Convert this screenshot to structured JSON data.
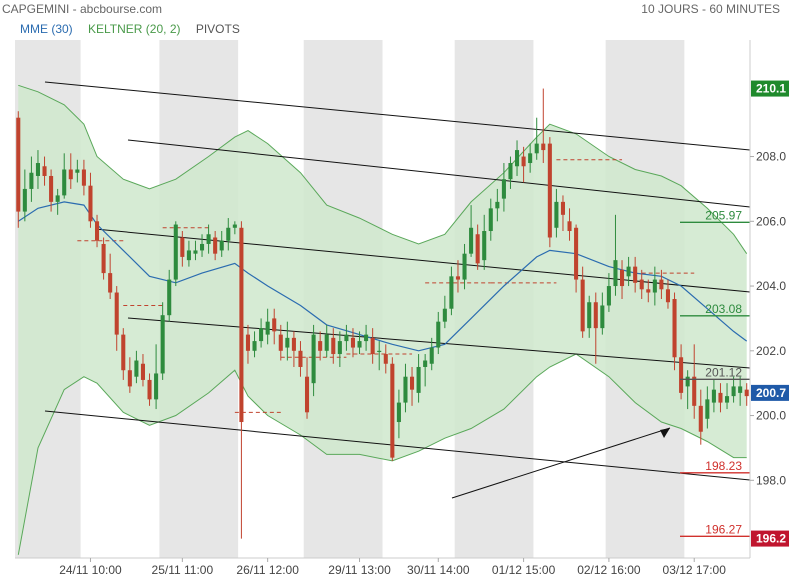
{
  "header": {
    "title": "CAPGEMINI - abcbourse.com",
    "period": "10 JOURS - 60 MINUTES"
  },
  "legend": {
    "mme": "MME (30)",
    "keltner": "KELTNER (20, 2)",
    "pivots": "PIVOTS"
  },
  "colors": {
    "up": "#2e8b3e",
    "down": "#c0432e",
    "mme": "#2b6cb0",
    "keltner_line": "#5aa85a",
    "keltner_fill": "#cfe8cc",
    "session_shade": "#e6e6e6"
  },
  "chart_data": {
    "type": "candlestick",
    "x_tick_labels": [
      "24/11 10:00",
      "25/11 11:00",
      "26/11 12:00",
      "29/11 13:00",
      "30/11 14:00",
      "01/12 15:00",
      "02/12 16:00",
      "03/12 17:00"
    ],
    "y_ticks": [
      198.0,
      200.0,
      202.0,
      204.0,
      206.0,
      208.0
    ],
    "y_range": [
      195.6,
      211.6
    ],
    "price_badges": [
      {
        "label": "210.1",
        "value": 210.1,
        "color": "#1f8a2c"
      },
      {
        "label": "200.7",
        "value": 200.7,
        "color": "#1f5aa8"
      },
      {
        "label": "196.2",
        "value": 196.2,
        "color": "#c0152e"
      }
    ],
    "pivot_levels": [
      {
        "label": "205.97",
        "value": 205.97,
        "color": "#2e8b3e"
      },
      {
        "label": "203.08",
        "value": 203.08,
        "color": "#2e8b3e"
      },
      {
        "label": "201.12",
        "value": 201.12,
        "color": "#555555"
      },
      {
        "label": "198.23",
        "value": 198.23,
        "color": "#d0312d"
      },
      {
        "label": "196.27",
        "value": 196.27,
        "color": "#d0312d"
      }
    ],
    "candles": [
      [
        209.2,
        206.3,
        209.4,
        205.8
      ],
      [
        206.3,
        207.0,
        207.6,
        206.0
      ],
      [
        207.0,
        207.5,
        208.0,
        206.6
      ],
      [
        207.4,
        207.8,
        208.2,
        207.0
      ],
      [
        207.7,
        207.4,
        208.0,
        207.1
      ],
      [
        207.4,
        206.6,
        207.6,
        206.3
      ],
      [
        206.6,
        206.8,
        207.0,
        206.2
      ],
      [
        206.8,
        207.6,
        208.1,
        206.7
      ],
      [
        207.6,
        207.3,
        208.1,
        207.0
      ],
      [
        207.5,
        207.6,
        207.9,
        207.2
      ],
      [
        207.6,
        207.1,
        207.9,
        206.8
      ],
      [
        207.1,
        206.0,
        207.5,
        205.8
      ],
      [
        206.0,
        205.4,
        206.2,
        205.2
      ],
      [
        205.3,
        204.4,
        205.5,
        204.2
      ],
      [
        204.4,
        203.8,
        205.0,
        203.6
      ],
      [
        203.8,
        202.5,
        204.0,
        202.0
      ],
      [
        202.5,
        201.4,
        202.7,
        201.1
      ],
      [
        201.4,
        200.9,
        201.8,
        200.7
      ],
      [
        201.2,
        201.7,
        202.0,
        201.0
      ],
      [
        201.6,
        201.1,
        201.9,
        200.9
      ],
      [
        201.1,
        200.5,
        201.3,
        200.3
      ],
      [
        200.5,
        201.3,
        202.2,
        200.2
      ],
      [
        201.3,
        203.1,
        203.5,
        201.1
      ],
      [
        203.1,
        204.2,
        204.5,
        202.9
      ],
      [
        204.2,
        205.9,
        206.0,
        204.0
      ],
      [
        205.5,
        204.9,
        205.7,
        204.6
      ],
      [
        204.8,
        205.1,
        205.4,
        204.6
      ],
      [
        205.0,
        205.1,
        205.4,
        204.8
      ],
      [
        205.1,
        205.3,
        205.6,
        204.9
      ],
      [
        205.3,
        205.6,
        205.9,
        205.0
      ],
      [
        205.5,
        205.0,
        205.7,
        204.8
      ],
      [
        205.1,
        205.4,
        205.7,
        204.9
      ],
      [
        205.4,
        205.8,
        206.1,
        205.1
      ],
      [
        205.8,
        205.9,
        206.0,
        205.6
      ],
      [
        205.8,
        199.8,
        206.0,
        196.2
      ],
      [
        202.5,
        202.0,
        202.8,
        201.6
      ],
      [
        202.0,
        202.3,
        202.6,
        201.8
      ],
      [
        202.3,
        202.7,
        203.0,
        202.1
      ],
      [
        202.5,
        202.9,
        203.3,
        202.2
      ],
      [
        203.0,
        202.6,
        203.3,
        202.2
      ],
      [
        202.5,
        202.0,
        202.8,
        201.7
      ],
      [
        202.1,
        202.4,
        202.9,
        201.7
      ],
      [
        202.4,
        202.0,
        202.6,
        201.5
      ],
      [
        202.0,
        201.5,
        202.3,
        201.2
      ],
      [
        201.2,
        200.1,
        201.8,
        199.9
      ],
      [
        201.0,
        202.5,
        202.8,
        200.6
      ],
      [
        202.3,
        202.0,
        202.6,
        201.7
      ],
      [
        202.0,
        202.5,
        202.8,
        201.8
      ],
      [
        202.4,
        201.9,
        202.7,
        201.6
      ],
      [
        201.9,
        202.3,
        202.6,
        201.5
      ],
      [
        202.3,
        202.5,
        202.8,
        202.0
      ],
      [
        202.4,
        202.1,
        202.7,
        201.8
      ],
      [
        202.1,
        202.3,
        202.6,
        201.9
      ],
      [
        202.3,
        202.5,
        202.8,
        202.0
      ],
      [
        202.4,
        201.9,
        202.7,
        201.6
      ],
      [
        202.0,
        202.0,
        202.3,
        201.4
      ],
      [
        201.9,
        201.6,
        202.2,
        201.3
      ],
      [
        201.6,
        198.7,
        201.8,
        198.6
      ],
      [
        199.8,
        200.4,
        200.8,
        199.3
      ],
      [
        200.4,
        201.2,
        201.6,
        200.1
      ],
      [
        201.2,
        200.8,
        201.5,
        200.3
      ],
      [
        200.7,
        201.5,
        201.9,
        200.4
      ],
      [
        201.5,
        201.7,
        201.9,
        200.9
      ],
      [
        201.6,
        202.1,
        202.4,
        201.4
      ],
      [
        202.1,
        202.9,
        203.2,
        201.9
      ],
      [
        202.9,
        203.3,
        203.7,
        202.7
      ],
      [
        203.3,
        204.3,
        204.6,
        203.1
      ],
      [
        204.3,
        204.2,
        204.8,
        203.8
      ],
      [
        204.2,
        205.0,
        205.3,
        203.9
      ],
      [
        205.0,
        205.8,
        206.5,
        204.9
      ],
      [
        205.6,
        204.7,
        205.9,
        204.5
      ],
      [
        204.8,
        205.7,
        206.2,
        204.5
      ],
      [
        205.7,
        206.4,
        206.7,
        205.4
      ],
      [
        206.4,
        206.6,
        207.0,
        206.0
      ],
      [
        206.7,
        207.3,
        207.8,
        206.3
      ],
      [
        207.3,
        207.8,
        208.0,
        207.0
      ],
      [
        207.7,
        208.2,
        208.5,
        207.4
      ],
      [
        208.0,
        207.7,
        208.3,
        207.2
      ],
      [
        207.8,
        208.1,
        208.4,
        207.5
      ],
      [
        208.1,
        208.4,
        209.2,
        207.9
      ],
      [
        208.4,
        208.2,
        210.1,
        207.8
      ],
      [
        208.4,
        205.5,
        208.6,
        205.2
      ],
      [
        205.8,
        206.6,
        207.0,
        205.5
      ],
      [
        206.6,
        206.2,
        206.8,
        205.7
      ],
      [
        206.0,
        205.7,
        206.4,
        205.4
      ],
      [
        205.8,
        204.2,
        205.9,
        203.8
      ],
      [
        204.2,
        202.6,
        204.6,
        202.4
      ],
      [
        202.7,
        203.5,
        203.7,
        202.4
      ],
      [
        203.5,
        202.7,
        203.8,
        201.6
      ],
      [
        202.7,
        203.4,
        203.8,
        202.5
      ],
      [
        203.4,
        204.0,
        204.4,
        203.2
      ],
      [
        204.0,
        204.8,
        206.2,
        203.7
      ],
      [
        204.5,
        204.0,
        204.8,
        203.6
      ],
      [
        204.3,
        204.6,
        204.9,
        204.0
      ],
      [
        204.6,
        204.1,
        204.9,
        203.8
      ],
      [
        204.2,
        203.9,
        204.5,
        203.6
      ],
      [
        203.9,
        203.8,
        204.2,
        203.5
      ],
      [
        203.8,
        204.2,
        204.6,
        203.4
      ],
      [
        204.2,
        203.9,
        204.5,
        203.6
      ],
      [
        203.9,
        203.5,
        204.2,
        203.3
      ],
      [
        203.6,
        201.8,
        203.8,
        201.4
      ],
      [
        201.8,
        200.7,
        202.2,
        200.5
      ],
      [
        200.9,
        201.2,
        201.4,
        200.2
      ],
      [
        201.2,
        200.3,
        202.2,
        199.9
      ],
      [
        200.3,
        199.5,
        200.8,
        199.1
      ],
      [
        199.9,
        200.5,
        200.9,
        199.6
      ],
      [
        200.4,
        200.8,
        201.1,
        200.1
      ],
      [
        200.7,
        200.4,
        201.0,
        200.1
      ],
      [
        200.4,
        200.6,
        201.0,
        200.2
      ],
      [
        200.6,
        200.9,
        201.2,
        200.4
      ],
      [
        200.7,
        200.9,
        201.2,
        200.3
      ],
      [
        200.8,
        200.6,
        201.0,
        200.3
      ]
    ],
    "mme_line": [
      [
        0,
        206.0
      ],
      [
        3,
        206.4
      ],
      [
        7,
        206.6
      ],
      [
        10,
        206.5
      ],
      [
        12,
        205.9
      ],
      [
        16,
        205.1
      ],
      [
        20,
        204.3
      ],
      [
        24,
        204.1
      ],
      [
        28,
        204.4
      ],
      [
        33,
        204.7
      ],
      [
        35,
        204.4
      ],
      [
        38,
        204.0
      ],
      [
        43,
        203.4
      ],
      [
        47,
        202.8
      ],
      [
        52,
        202.5
      ],
      [
        57,
        202.2
      ],
      [
        61,
        202.0
      ],
      [
        65,
        202.2
      ],
      [
        69,
        203.0
      ],
      [
        74,
        204.0
      ],
      [
        79,
        204.9
      ],
      [
        81,
        205.1
      ],
      [
        85,
        205.0
      ],
      [
        90,
        204.6
      ],
      [
        94,
        204.4
      ],
      [
        98,
        204.3
      ],
      [
        101,
        204.0
      ],
      [
        105,
        203.3
      ],
      [
        109,
        202.6
      ],
      [
        111,
        202.3
      ]
    ],
    "keltner_upper": [
      [
        0,
        210.2
      ],
      [
        3,
        210.0
      ],
      [
        7,
        209.6
      ],
      [
        10,
        209.0
      ],
      [
        12,
        208.0
      ],
      [
        16,
        207.3
      ],
      [
        20,
        207.0
      ],
      [
        24,
        207.3
      ],
      [
        29,
        208.0
      ],
      [
        33,
        208.6
      ],
      [
        35,
        208.8
      ],
      [
        38,
        208.4
      ],
      [
        43,
        207.5
      ],
      [
        47,
        206.5
      ],
      [
        52,
        206.1
      ],
      [
        57,
        205.6
      ],
      [
        61,
        205.3
      ],
      [
        65,
        205.6
      ],
      [
        69,
        206.6
      ],
      [
        74,
        207.5
      ],
      [
        79,
        208.6
      ],
      [
        81,
        209.0
      ],
      [
        85,
        208.7
      ],
      [
        90,
        208.0
      ],
      [
        94,
        207.6
      ],
      [
        98,
        207.4
      ],
      [
        101,
        207.1
      ],
      [
        105,
        206.4
      ],
      [
        109,
        205.6
      ],
      [
        111,
        205.0
      ]
    ],
    "keltner_lower": [
      [
        0,
        195.7
      ],
      [
        3,
        199.0
      ],
      [
        7,
        200.8
      ],
      [
        10,
        201.2
      ],
      [
        12,
        201.0
      ],
      [
        16,
        200.1
      ],
      [
        20,
        199.7
      ],
      [
        24,
        200.0
      ],
      [
        29,
        200.7
      ],
      [
        33,
        201.4
      ],
      [
        35,
        200.6
      ],
      [
        38,
        200.0
      ],
      [
        43,
        199.4
      ],
      [
        47,
        198.8
      ],
      [
        52,
        198.8
      ],
      [
        57,
        198.6
      ],
      [
        61,
        198.9
      ],
      [
        65,
        199.3
      ],
      [
        69,
        199.6
      ],
      [
        74,
        200.2
      ],
      [
        79,
        201.2
      ],
      [
        81,
        201.5
      ],
      [
        85,
        201.9
      ],
      [
        90,
        201.2
      ],
      [
        94,
        200.4
      ],
      [
        98,
        199.8
      ],
      [
        101,
        199.6
      ],
      [
        105,
        199.2
      ],
      [
        109,
        198.7
      ],
      [
        111,
        198.7
      ]
    ],
    "sessions_shaded": [
      [
        0,
        9
      ],
      [
        22,
        33
      ],
      [
        44,
        55
      ],
      [
        67,
        78
      ],
      [
        90,
        101
      ]
    ]
  }
}
